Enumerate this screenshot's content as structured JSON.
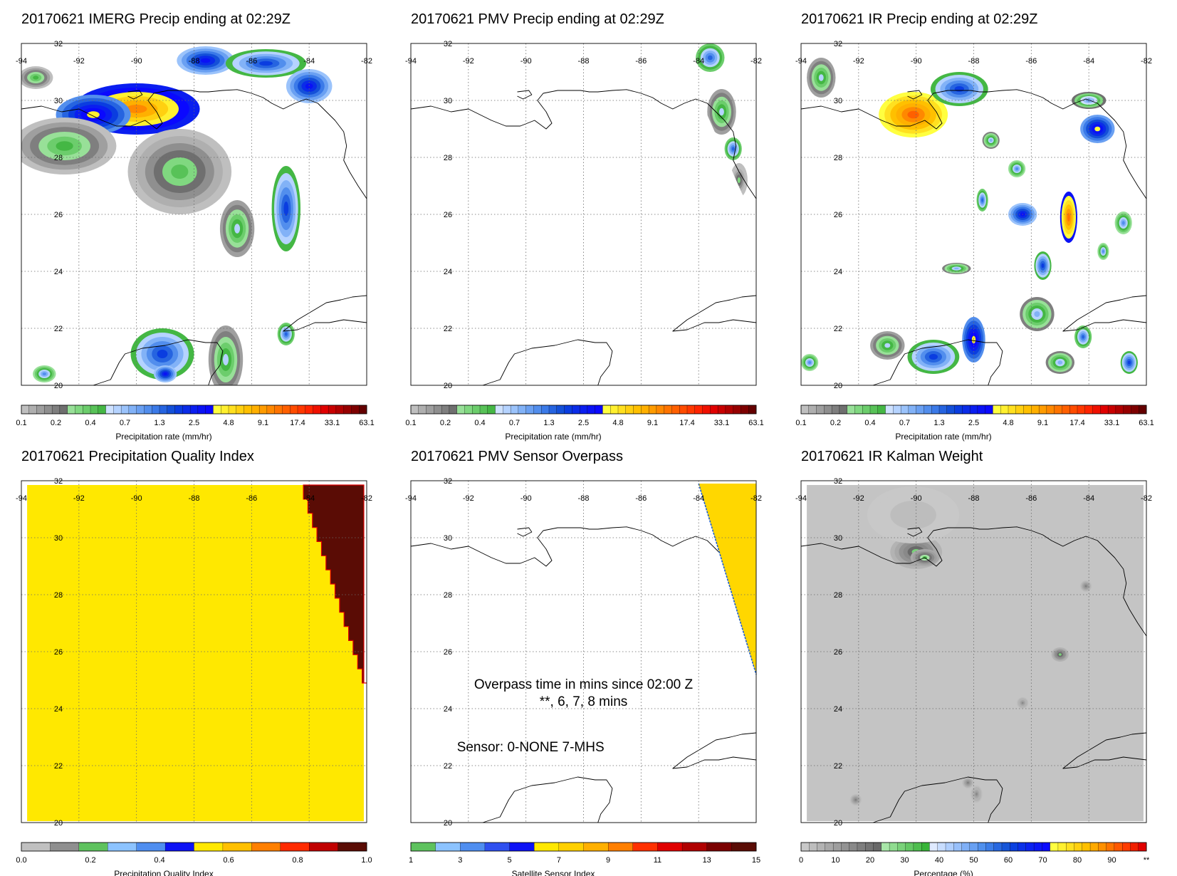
{
  "chart_data": [
    {
      "type": "heatmap",
      "title": "20170621 IMERG Precip ending at 02:29Z",
      "colorbar": "precip",
      "map": "land",
      "fields": [
        {
          "lon": -90,
          "lat": 29.7,
          "value": 14,
          "spread": [
            2.2,
            0.9
          ]
        },
        {
          "lon": -91.5,
          "lat": 29.5,
          "value": 6,
          "spread": [
            1.3,
            0.7
          ]
        },
        {
          "lon": -87.6,
          "lat": 31.4,
          "value": 4,
          "spread": [
            1.0,
            0.5
          ]
        },
        {
          "lon": -85.5,
          "lat": 31.3,
          "value": 2.5,
          "spread": [
            1.4,
            0.5
          ]
        },
        {
          "lon": -84,
          "lat": 30.5,
          "value": 4,
          "spread": [
            0.8,
            0.6
          ]
        },
        {
          "lon": -92.5,
          "lat": 28.4,
          "value": 0.6,
          "spread": [
            1.8,
            1.0
          ]
        },
        {
          "lon": -88.5,
          "lat": 27.5,
          "value": 0.5,
          "spread": [
            1.8,
            1.5
          ]
        },
        {
          "lon": -84.8,
          "lat": 26.2,
          "value": 2.5,
          "spread": [
            0.5,
            1.5
          ]
        },
        {
          "lon": -86.5,
          "lat": 25.5,
          "value": 0.8,
          "spread": [
            0.6,
            1.0
          ]
        },
        {
          "lon": -89.1,
          "lat": 21.1,
          "value": 2.5,
          "spread": [
            1.1,
            0.9
          ]
        },
        {
          "lon": -89.0,
          "lat": 20.4,
          "value": 4,
          "spread": [
            0.4,
            0.3
          ]
        },
        {
          "lon": -86.9,
          "lat": 20.9,
          "value": 0.8,
          "spread": [
            0.6,
            1.2
          ]
        },
        {
          "lon": -84.8,
          "lat": 21.8,
          "value": 1.8,
          "spread": [
            0.3,
            0.4
          ]
        },
        {
          "lon": -93.2,
          "lat": 20.4,
          "value": 1.5,
          "spread": [
            0.4,
            0.3
          ]
        },
        {
          "lon": -93.5,
          "lat": 30.8,
          "value": 0.6,
          "spread": [
            0.6,
            0.4
          ]
        }
      ]
    },
    {
      "type": "heatmap",
      "title": "20170621 PMV Precip ending at 02:29Z",
      "colorbar": "precip",
      "map": "land",
      "swath_lon_top": -84.8,
      "swath_lon_bottom": -82.3,
      "fields": [
        {
          "lon": -83.6,
          "lat": 31.5,
          "value": 1.8,
          "spread": [
            0.5,
            0.5
          ]
        },
        {
          "lon": -83.2,
          "lat": 29.6,
          "value": 0.8,
          "spread": [
            0.5,
            0.8
          ]
        },
        {
          "lon": -82.8,
          "lat": 28.3,
          "value": 2.0,
          "spread": [
            0.3,
            0.4
          ]
        },
        {
          "lon": -82.6,
          "lat": 27.2,
          "value": 0.4,
          "spread": [
            0.3,
            0.6
          ]
        }
      ]
    },
    {
      "type": "heatmap",
      "title": "20170621 IR Precip ending at 02:29Z",
      "colorbar": "precip",
      "map": "land",
      "fields": [
        {
          "lon": -90.1,
          "lat": 29.5,
          "value": 20,
          "spread": [
            1.2,
            0.8
          ]
        },
        {
          "lon": -88.5,
          "lat": 30.4,
          "value": 2.5,
          "spread": [
            1.0,
            0.6
          ]
        },
        {
          "lon": -84.7,
          "lat": 25.9,
          "value": 17,
          "spread": [
            0.3,
            0.9
          ]
        },
        {
          "lon": -88.0,
          "lat": 21.6,
          "value": 6,
          "spread": [
            0.4,
            0.8
          ]
        },
        {
          "lon": -89.4,
          "lat": 21.0,
          "value": 2.5,
          "spread": [
            0.9,
            0.6
          ]
        },
        {
          "lon": -83.7,
          "lat": 29.0,
          "value": 5,
          "spread": [
            0.6,
            0.5
          ]
        },
        {
          "lon": -86.3,
          "lat": 26.0,
          "value": 4,
          "spread": [
            0.5,
            0.4
          ]
        },
        {
          "lon": -85.6,
          "lat": 24.2,
          "value": 2.5,
          "spread": [
            0.3,
            0.5
          ]
        },
        {
          "lon": -87.7,
          "lat": 26.5,
          "value": 2.0,
          "spread": [
            0.2,
            0.4
          ]
        },
        {
          "lon": -84.2,
          "lat": 21.7,
          "value": 2.0,
          "spread": [
            0.3,
            0.4
          ]
        },
        {
          "lon": -82.6,
          "lat": 20.8,
          "value": 2.5,
          "spread": [
            0.3,
            0.4
          ]
        },
        {
          "lon": -83.5,
          "lat": 24.7,
          "value": 1.5,
          "spread": [
            0.2,
            0.3
          ]
        },
        {
          "lon": -84.0,
          "lat": 30.0,
          "value": 1.3,
          "spread": [
            0.6,
            0.3
          ]
        },
        {
          "lon": -93.7,
          "lat": 20.8,
          "value": 1.5,
          "spread": [
            0.3,
            0.3
          ]
        },
        {
          "lon": -93.3,
          "lat": 30.8,
          "value": 0.8,
          "spread": [
            0.5,
            0.7
          ]
        },
        {
          "lon": -86.5,
          "lat": 27.6,
          "value": 1.5,
          "spread": [
            0.3,
            0.3
          ]
        },
        {
          "lon": -85.0,
          "lat": 20.8,
          "value": 1.0,
          "spread": [
            0.5,
            0.4
          ]
        },
        {
          "lon": -85.8,
          "lat": 22.5,
          "value": 1.0,
          "spread": [
            0.6,
            0.6
          ]
        },
        {
          "lon": -82.8,
          "lat": 25.7,
          "value": 1.5,
          "spread": [
            0.3,
            0.4
          ]
        },
        {
          "lon": -88.6,
          "lat": 24.1,
          "value": 1.0,
          "spread": [
            0.5,
            0.2
          ]
        },
        {
          "lon": -87.4,
          "lat": 28.6,
          "value": 1.0,
          "spread": [
            0.3,
            0.3
          ]
        },
        {
          "lon": -91.0,
          "lat": 21.4,
          "value": 0.8,
          "spread": [
            0.6,
            0.5
          ]
        }
      ]
    },
    {
      "type": "heatmap",
      "title": "20170621 Precipitation Quality Index",
      "colorbar": "pqi",
      "map": "land",
      "background_value": 0.6,
      "dark_value": 1.1,
      "boundary_lon_top": -84.2,
      "boundary_lon_bottom": -82.0,
      "boundary_lat_bottom": 24.9
    },
    {
      "type": "heatmap",
      "title": "20170621 PMV Sensor Overpass",
      "colorbar": "sensor",
      "map": "land",
      "swath_lon_top": -84.0,
      "swath_lon_bottom": -82.0,
      "swath_lat_bottom": 25.2,
      "annotation_lines": [
        "Overpass time in mins since 02:00 Z",
        "**, 6, 7, 8 mins",
        "Sensor:   0-NONE  7-MHS"
      ]
    },
    {
      "type": "heatmap",
      "title": "20170621 IR Kalman Weight",
      "colorbar": "percent",
      "map": "land",
      "fields": [
        {
          "lon": -90.0,
          "lat": 29.5,
          "value": 38,
          "spread": [
            0.9,
            0.6
          ]
        },
        {
          "lon": -89.7,
          "lat": 29.3,
          "value": 45,
          "spread": [
            0.5,
            0.3
          ]
        },
        {
          "lon": -85.0,
          "lat": 25.9,
          "value": 38,
          "spread": [
            0.3,
            0.25
          ]
        },
        {
          "lon": -84.1,
          "lat": 28.3,
          "value": 22,
          "spread": [
            0.2,
            0.2
          ]
        },
        {
          "lon": -88.2,
          "lat": 21.4,
          "value": 22,
          "spread": [
            0.2,
            0.2
          ]
        },
        {
          "lon": -87.9,
          "lat": 21.0,
          "value": 20,
          "spread": [
            0.2,
            0.3
          ]
        },
        {
          "lon": -92.1,
          "lat": 20.8,
          "value": 22,
          "spread": [
            0.2,
            0.2
          ]
        },
        {
          "lon": -86.3,
          "lat": 24.2,
          "value": 20,
          "spread": [
            0.2,
            0.2
          ]
        },
        {
          "lon": -90.1,
          "lat": 30.8,
          "value": 6,
          "spread": [
            1.6,
            1.0
          ]
        }
      ]
    }
  ],
  "axes": {
    "lon_ticks": [
      -94,
      -92,
      -90,
      -88,
      -86,
      -84,
      -82
    ],
    "lat_ticks": [
      32,
      30,
      28,
      26,
      24,
      22,
      20
    ],
    "xlim": [
      -94,
      -82
    ],
    "ylim": [
      20,
      32
    ]
  },
  "colorbars": {
    "precip": {
      "label": "Precipitation rate (mm/hr)",
      "ticks": [
        "0.1",
        "0.2",
        "0.4",
        "0.7",
        "1.3",
        "2.5",
        "4.8",
        "9.1",
        "17.4",
        "33.1",
        "63.1"
      ],
      "colors": [
        "#bfbfbf",
        "#afafaf",
        "#9f9f9f",
        "#8f8f8f",
        "#7f7f7f",
        "#6f6f6f",
        "#98e098",
        "#80d880",
        "#6ccd6c",
        "#58c258",
        "#44b744",
        "#cfe2ff",
        "#b5d3ff",
        "#9bc3fb",
        "#82b2f7",
        "#6aa0f2",
        "#528eed",
        "#3b7ae8",
        "#2664e0",
        "#1450d8",
        "#0a3de0",
        "#0a2ce8",
        "#0a1ef0",
        "#0a12f5",
        "#0a08ff",
        "#ffff40",
        "#fff030",
        "#ffe020",
        "#ffd010",
        "#ffc000",
        "#ffb000",
        "#ff9c00",
        "#ff8800",
        "#ff7400",
        "#ff6000",
        "#ff4c00",
        "#ff3800",
        "#ff2400",
        "#f01000",
        "#e00000",
        "#c80000",
        "#b00000",
        "#960000",
        "#7d0000",
        "#640000"
      ]
    },
    "pqi": {
      "label": "Precipitation Quality Index",
      "ticks": [
        "0.0",
        "0.2",
        "0.4",
        "0.6",
        "0.8",
        "1.0"
      ],
      "colors": [
        "#c0c0c0",
        "#8f8f8f",
        "#5ec25e",
        "#8cc3ff",
        "#4f8ef0",
        "#0d12f5",
        "#ffe800",
        "#ffc000",
        "#ff7f00",
        "#ff2a00",
        "#c00000",
        "#5a0c05"
      ]
    },
    "sensor": {
      "label": "Satellite Sensor Index",
      "ticks": [
        "1",
        "3",
        "5",
        "7",
        "9",
        "11",
        "13",
        "15"
      ],
      "colors": [
        "#5ec25e",
        "#8cc3ff",
        "#4f8ef0",
        "#2f50f0",
        "#0d12f5",
        "#ffe800",
        "#ffd000",
        "#ffb000",
        "#ff7f00",
        "#ff3000",
        "#e00000",
        "#b00000",
        "#7a0000",
        "#5a0c05"
      ]
    },
    "percent": {
      "label": "Percentage (%)",
      "ticks": [
        "0",
        "10",
        "20",
        "30",
        "40",
        "50",
        "60",
        "70",
        "80",
        "90",
        "**"
      ],
      "colors": [
        "#c8c8c8",
        "#bdbdbd",
        "#b3b3b3",
        "#a8a8a8",
        "#9e9e9e",
        "#939393",
        "#898989",
        "#7e7e7e",
        "#747474",
        "#696969",
        "#a8e6a8",
        "#90dc90",
        "#7ad27a",
        "#64c864",
        "#4ebe4e",
        "#38b438",
        "#dfeaff",
        "#c8ddff",
        "#b0cfff",
        "#98c0fb",
        "#80b0f7",
        "#68a0f2",
        "#5090ed",
        "#3c7de8",
        "#2868e0",
        "#1655d8",
        "#0a40e0",
        "#0a30e8",
        "#0a22f0",
        "#0a16f5",
        "#0a0aff",
        "#ffff40",
        "#fff030",
        "#ffe020",
        "#ffd010",
        "#ffc000",
        "#ffaa00",
        "#ff9000",
        "#ff7400",
        "#ff5800",
        "#ff3c00",
        "#f02000",
        "#e00000"
      ]
    }
  },
  "colors": {
    "land": "#ffffff",
    "coast": "#000000",
    "grid": "#6a6a6a",
    "kalman_background": "#c4c4c4",
    "pqi_background": "#ffe800",
    "pqi_dark": "#5a0c05",
    "swath_fill": "#ffd700",
    "swath_edge": "#1e5fd0"
  }
}
